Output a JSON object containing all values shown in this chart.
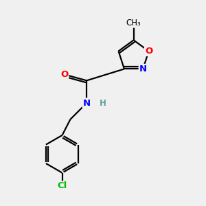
{
  "background_color": "#f0f0f0",
  "bond_color": "#000000",
  "atom_colors": {
    "O": "#ff0000",
    "N": "#0000ff",
    "Cl": "#00bb00",
    "C": "#000000",
    "H": "#5f9ea0"
  },
  "figsize": [
    3.0,
    3.0
  ],
  "dpi": 100,
  "xlim": [
    0,
    10
  ],
  "ylim": [
    0,
    10
  ]
}
